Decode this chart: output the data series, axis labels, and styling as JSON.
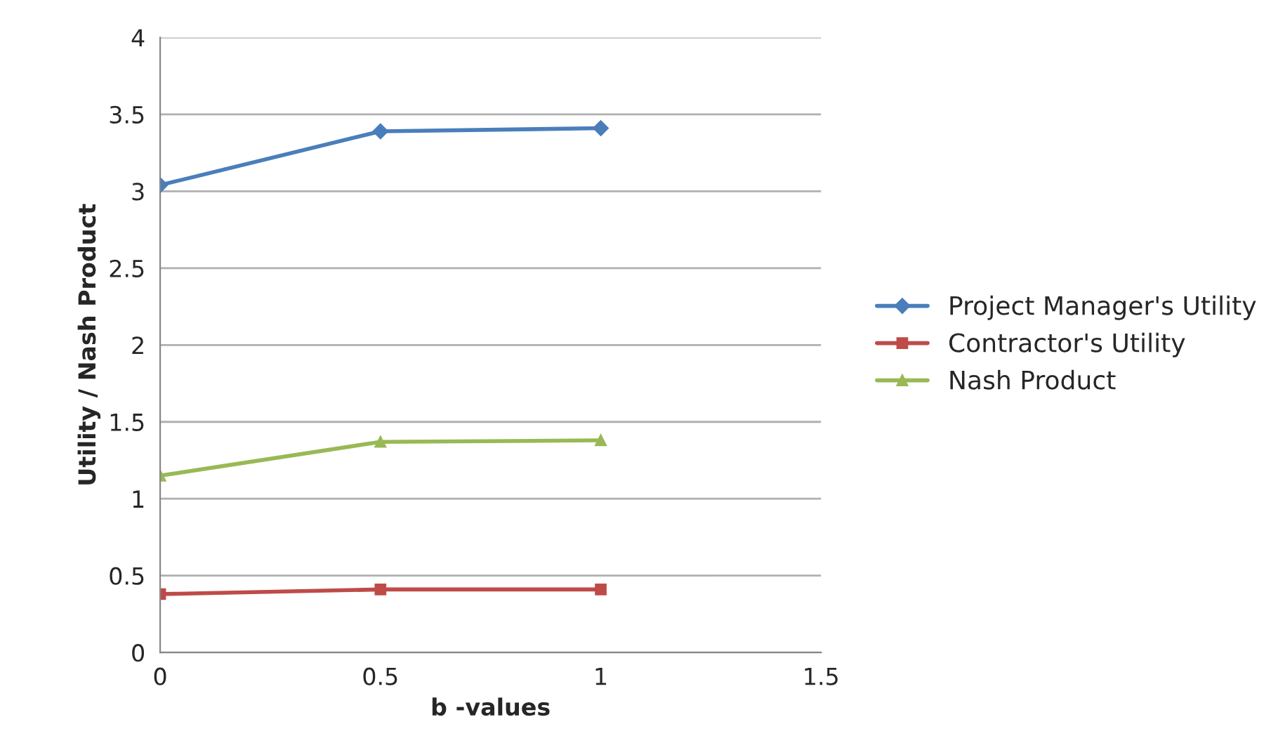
{
  "chart_data": {
    "type": "line",
    "xlabel": "b -values",
    "ylabel": "Utility / Nash Product",
    "x": [
      0,
      0.5,
      1
    ],
    "series": [
      {
        "name": "Project Manager's Utility",
        "color": "#4a7ebb",
        "marker": "diamond",
        "values": [
          3.04,
          3.39,
          3.41
        ]
      },
      {
        "name": "Contractor's Utility",
        "color": "#be4b48",
        "marker": "square",
        "values": [
          0.38,
          0.41,
          0.41
        ]
      },
      {
        "name": "Nash Product",
        "color": "#98b954",
        "marker": "triangle",
        "values": [
          1.15,
          1.37,
          1.38
        ]
      }
    ],
    "xlim": [
      0,
      1.5
    ],
    "xticks": [
      0,
      0.5,
      1,
      1.5
    ],
    "ylim": [
      0,
      4
    ],
    "yticks": [
      0,
      0.5,
      1,
      1.5,
      2,
      2.5,
      3,
      3.5,
      4
    ],
    "grid": "y",
    "legend": "right",
    "line_style": "solid"
  }
}
